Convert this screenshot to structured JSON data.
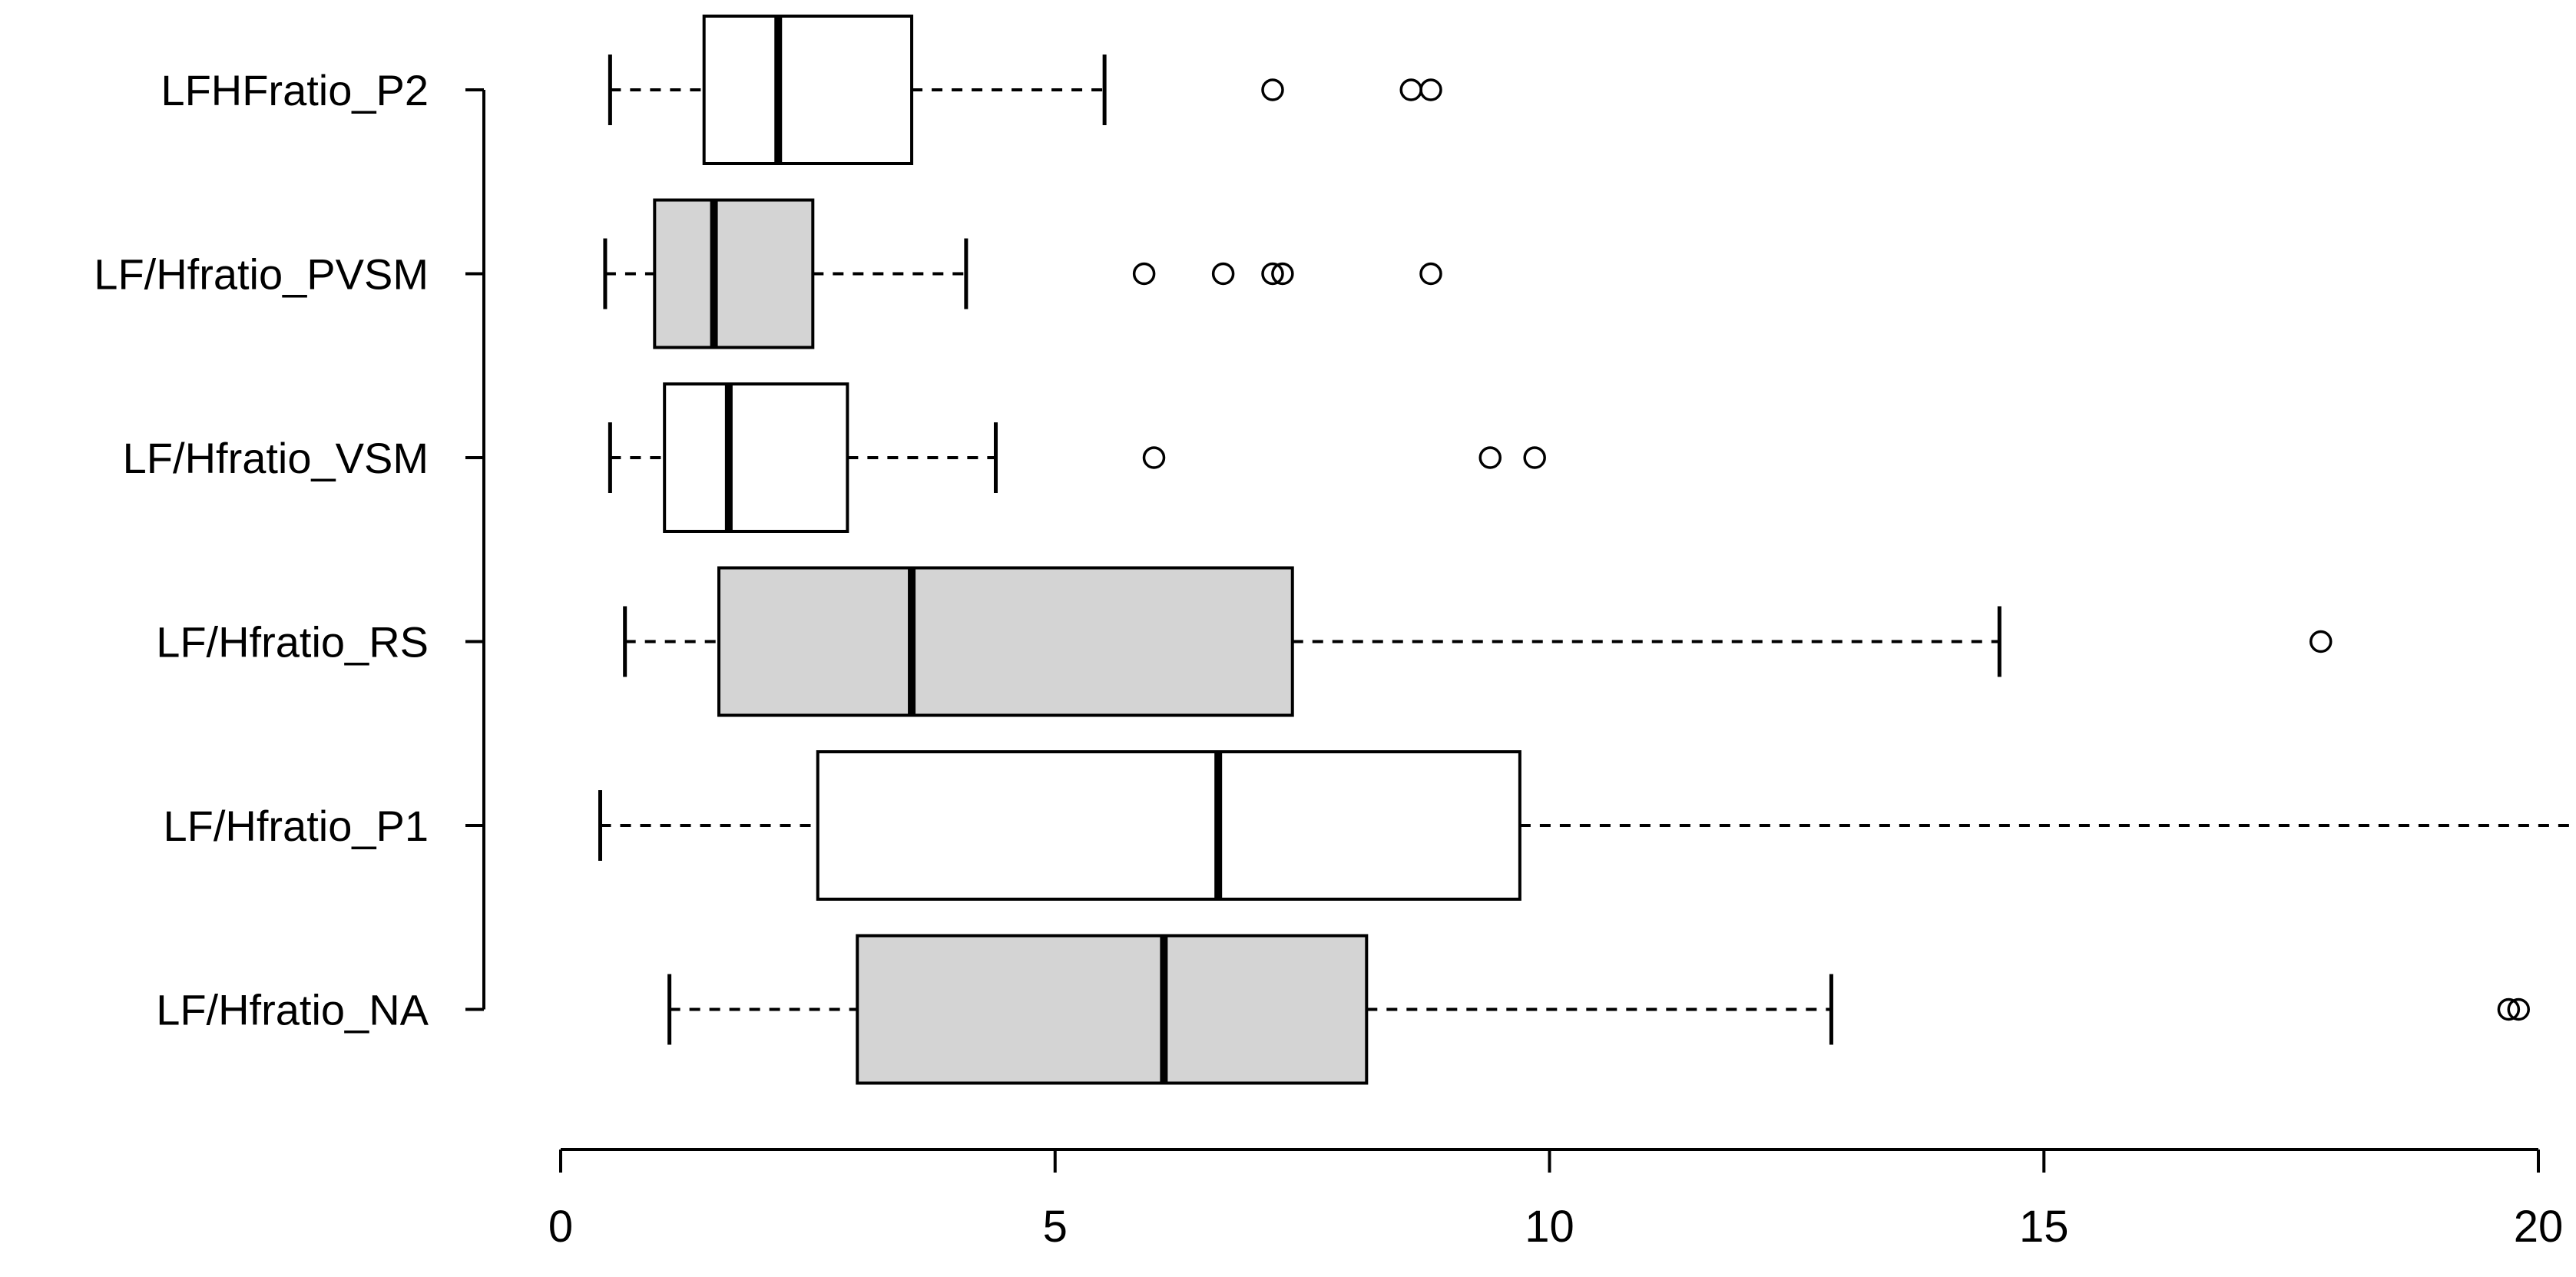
{
  "colors": {
    "box_shaded": "#d4d4d4",
    "box_plain": "#ffffff",
    "ink": "#000000"
  },
  "chart_data": {
    "type": "boxplot",
    "orientation": "horizontal",
    "title": "",
    "xlabel": "",
    "ylabel": "",
    "xlim": [
      0,
      20
    ],
    "x_ticks": [
      0,
      5,
      10,
      15,
      20
    ],
    "x_tick_labels": [
      "0",
      "5",
      "10",
      "15",
      "20"
    ],
    "grid": false,
    "legend": "none",
    "series": [
      {
        "label": "LFHFratio_P2",
        "whisker_low": 0.5,
        "q1": 1.45,
        "median": 2.2,
        "q3": 3.55,
        "whisker_high": 5.5,
        "outliers": [
          7.2,
          8.6,
          8.8
        ],
        "shaded": false
      },
      {
        "label": "LF/Hfratio_PVSM",
        "whisker_low": 0.45,
        "q1": 0.95,
        "median": 1.55,
        "q3": 2.55,
        "whisker_high": 4.1,
        "outliers": [
          5.9,
          6.7,
          7.2,
          7.3,
          8.8
        ],
        "shaded": true
      },
      {
        "label": "LF/Hfratio_VSM",
        "whisker_low": 0.5,
        "q1": 1.05,
        "median": 1.7,
        "q3": 2.9,
        "whisker_high": 4.4,
        "outliers": [
          6.0,
          9.4,
          9.85
        ],
        "shaded": false
      },
      {
        "label": "LF/Hfratio_RS",
        "whisker_low": 0.65,
        "q1": 1.6,
        "median": 3.55,
        "q3": 7.4,
        "whisker_high": 14.55,
        "outliers": [
          17.8
        ],
        "shaded": true
      },
      {
        "label": "LF/Hfratio_P1",
        "whisker_low": 0.4,
        "q1": 2.6,
        "median": 6.65,
        "q3": 9.7,
        "whisker_high": 20.45,
        "outliers": [],
        "shaded": false
      },
      {
        "label": "LF/Hfratio_NA",
        "whisker_low": 1.1,
        "q1": 3.0,
        "median": 6.1,
        "q3": 8.15,
        "whisker_high": 12.85,
        "outliers": [
          19.7,
          19.8
        ],
        "shaded": true
      }
    ]
  }
}
